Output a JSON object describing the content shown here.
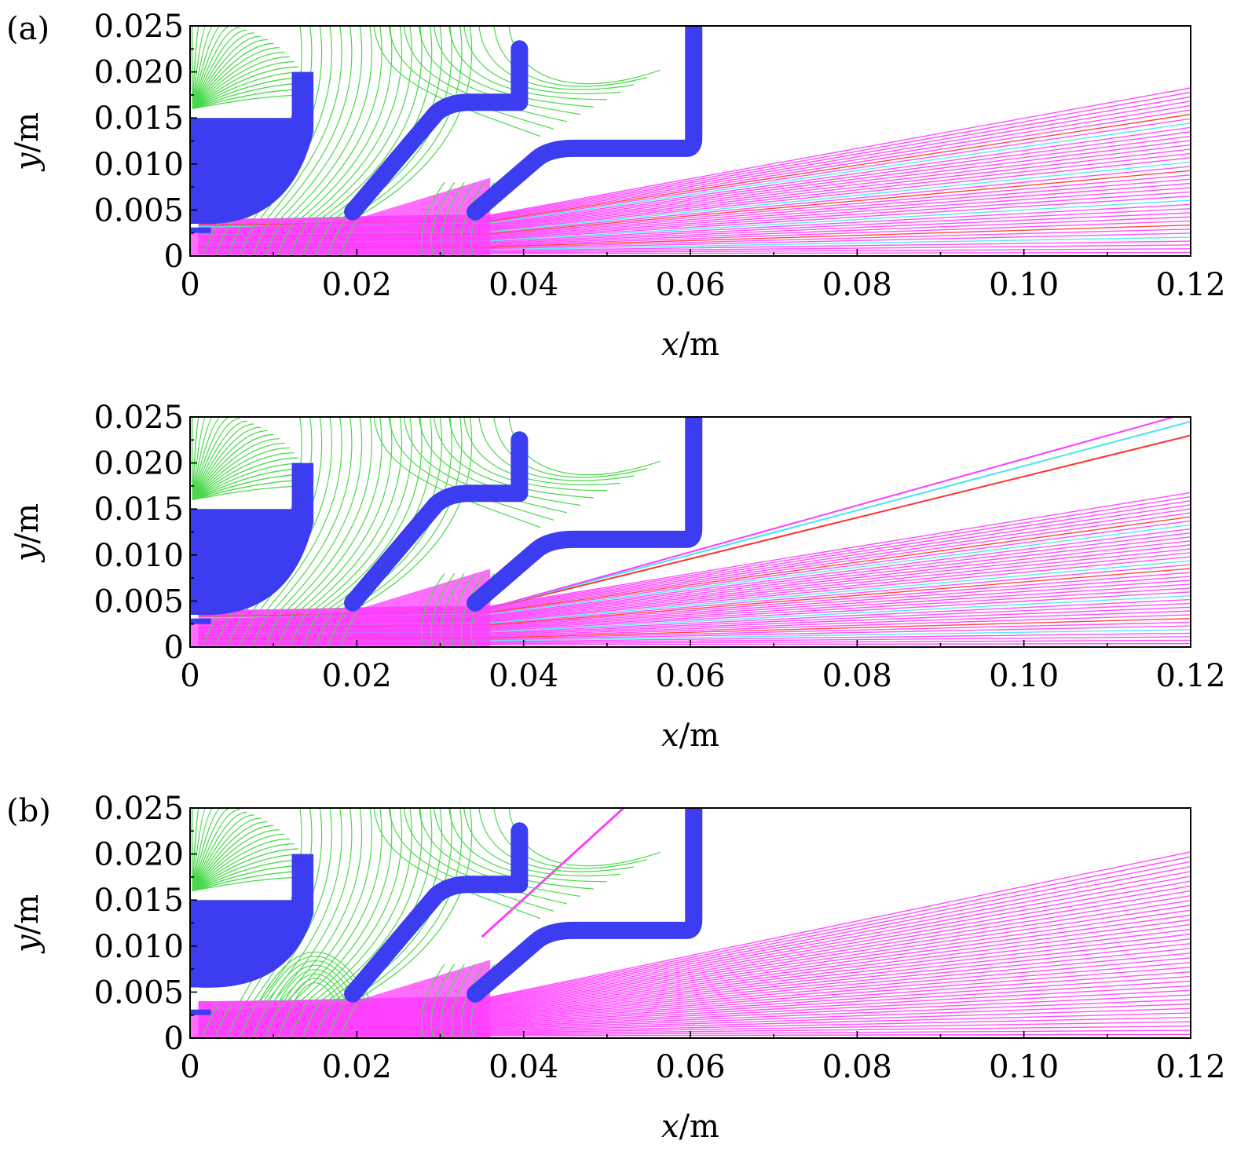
{
  "chart_data": [
    {
      "type": "line",
      "panel_label": "(a)",
      "xlabel": "x/m",
      "ylabel": "y/m",
      "xlim": [
        0,
        0.12
      ],
      "ylim": [
        0,
        0.025
      ],
      "x_ticks": [
        "0",
        "0.02",
        "0.04",
        "0.06",
        "0.08",
        "0.10",
        "0.12"
      ],
      "y_ticks": [
        "0",
        "0.005",
        "0.010",
        "0.015",
        "0.020",
        "0.025"
      ],
      "description_series": [
        {
          "name": "equipotential lines",
          "color": "#4ad84a"
        },
        {
          "name": "ion trajectories",
          "color": "#ff3cff"
        },
        {
          "name": "electrodes",
          "color": "#3c3cf0"
        }
      ],
      "plume_outer_y_at_0_12": 0.0185,
      "num_trajectories": 40
    },
    {
      "type": "line",
      "panel_label": "",
      "xlabel": "x/m",
      "ylabel": "y/m",
      "xlim": [
        0,
        0.12
      ],
      "ylim": [
        0,
        0.025
      ],
      "x_ticks": [
        "0",
        "0.02",
        "0.04",
        "0.06",
        "0.08",
        "0.10",
        "0.12"
      ],
      "y_ticks": [
        "0",
        "0.005",
        "0.010",
        "0.015",
        "0.020",
        "0.025"
      ],
      "plume_outer_y_at_0_12": 0.017,
      "stray_beam_y_at_0_12": [
        0.023,
        0.0245,
        0.0255
      ],
      "num_trajectories": 40
    },
    {
      "type": "line",
      "panel_label": "(b)",
      "xlabel": "x/m",
      "ylabel": "y/m",
      "xlim": [
        0,
        0.12
      ],
      "ylim": [
        0,
        0.025
      ],
      "x_ticks": [
        "0",
        "0.02",
        "0.04",
        "0.06",
        "0.08",
        "0.10",
        "0.12"
      ],
      "y_ticks": [
        "0",
        "0.005",
        "0.010",
        "0.015",
        "0.020",
        "0.025"
      ],
      "plume_outer_y_at_0_12": 0.0205,
      "backflow_line": {
        "x": [
          0.035,
          0.052
        ],
        "y": [
          0.011,
          0.025
        ]
      },
      "num_trajectories": 40
    }
  ],
  "colors": {
    "electrode": "#3c3cf0",
    "equipotential": "#4ad84a",
    "trajectory": "#ff3cff",
    "trajectory_alt1": "#44e6f0",
    "trajectory_alt2": "#ff3030"
  }
}
